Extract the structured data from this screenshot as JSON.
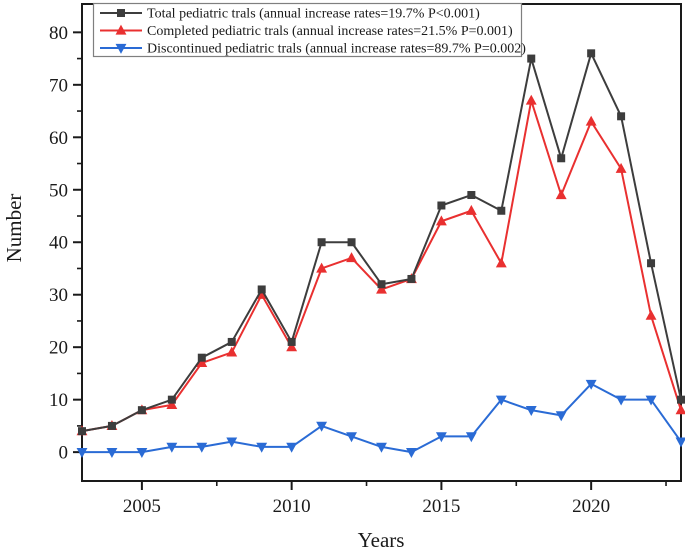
{
  "figure": {
    "background": "#ffffff",
    "frame_color": "#1a1a1a"
  },
  "chart_data": {
    "type": "line",
    "title": "",
    "xlabel": "Years",
    "ylabel": "Number",
    "x": [
      2003,
      2004,
      2005,
      2006,
      2007,
      2008,
      2009,
      2010,
      2011,
      2012,
      2013,
      2014,
      2015,
      2016,
      2017,
      2018,
      2019,
      2020,
      2021,
      2022,
      2023
    ],
    "series": [
      {
        "name": "Total pediatric trals (annual increase rates=19.7% P<0.001)",
        "slug": "total-pediatric-trials",
        "color": "#3d3d3d",
        "marker": "square",
        "values": [
          4,
          5,
          8,
          10,
          18,
          21,
          31,
          21,
          40,
          40,
          32,
          33,
          47,
          49,
          46,
          75,
          56,
          76,
          64,
          36,
          10
        ]
      },
      {
        "name": "Completed pediatric trals  (annual increase rates=21.5% P=0.001)",
        "slug": "completed-pediatric-trials",
        "color": "#e93030",
        "marker": "triangle-up",
        "values": [
          4,
          5,
          8,
          9,
          17,
          19,
          30,
          20,
          35,
          37,
          31,
          33,
          44,
          46,
          36,
          67,
          49,
          63,
          54,
          26,
          8
        ]
      },
      {
        "name": "Discontinued pediatric trals  (annual increase rates=89.7% P=0.002)",
        "slug": "discontinued-pediatric-trials",
        "color": "#2a6bd5",
        "marker": "triangle-down",
        "values": [
          0,
          0,
          0,
          1,
          1,
          2,
          1,
          1,
          5,
          3,
          1,
          0,
          3,
          3,
          10,
          8,
          7,
          13,
          10,
          10,
          2
        ]
      }
    ],
    "xlim": [
      2003,
      2023
    ],
    "ylim": [
      -5.5,
      85.4
    ],
    "y_ticks": [
      0,
      10,
      20,
      30,
      40,
      50,
      60,
      70,
      80
    ],
    "y_minor_ticks": [
      5,
      15,
      25,
      35,
      45,
      55,
      65,
      75
    ],
    "x_ticks": [
      2005,
      2010,
      2015,
      2020
    ],
    "x_minor_ticks": [
      2007.5,
      2012.5,
      2017.5,
      2022.5
    ],
    "grid": false,
    "legend_position": "top-left"
  }
}
